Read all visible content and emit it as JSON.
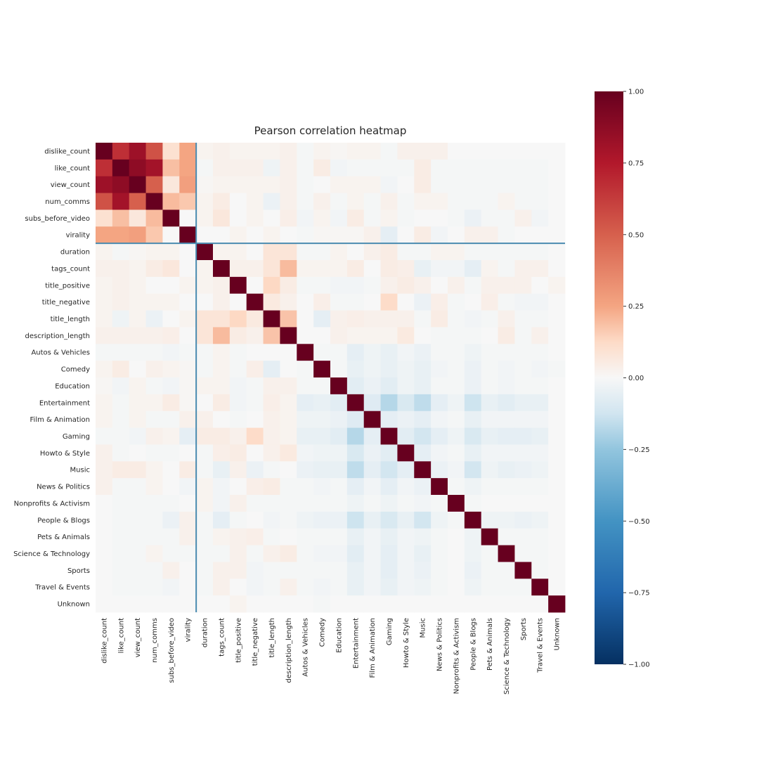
{
  "chart_data": {
    "type": "heatmap",
    "title": "Pearson correlation heatmap",
    "xlabel": "",
    "ylabel": "",
    "labels": [
      "dislike_count",
      "like_count",
      "view_count",
      "num_comms",
      "subs_before_video",
      "virality",
      "duration",
      "tags_count",
      "title_positive",
      "title_negative",
      "title_length",
      "description_length",
      "Autos & Vehicles",
      "Comedy",
      "Education",
      "Entertainment",
      "Film & Animation",
      "Gaming",
      "Howto & Style",
      "Music",
      "News & Politics",
      "Nonprofits & Activism",
      "People & Blogs",
      "Pets & Animals",
      "Science & Technology",
      "Sports",
      "Travel & Events",
      "Unknown"
    ],
    "colorbar": {
      "range": [
        -1.0,
        1.0
      ],
      "ticks": [
        -1.0,
        -0.75,
        -0.5,
        -0.25,
        0.0,
        0.25,
        0.5,
        0.75,
        1.0
      ],
      "tick_labels": [
        "−1.00",
        "−0.75",
        "−0.50",
        "−0.25",
        "0.00",
        "0.25",
        "0.50",
        "0.75",
        "1.00"
      ],
      "colormap": "RdBu_r"
    },
    "divider_after_index": 5,
    "divider_color": "#4a8bb0",
    "upper_values": [
      [
        0.67,
        0.82,
        0.55,
        0.1,
        0.25,
        0.02,
        0.03,
        0.02,
        0.02,
        0.02,
        0.03,
        -0.01,
        0.02,
        0.01,
        0.02,
        0.02,
        -0.01,
        0.03,
        0.03,
        0.03,
        0.0,
        0.0,
        0.0,
        0.0,
        0.0,
        0.0,
        0.0
      ],
      [
        0.87,
        0.8,
        0.19,
        0.25,
        -0.01,
        0.03,
        0.03,
        0.03,
        -0.03,
        0.03,
        -0.01,
        0.05,
        -0.02,
        -0.01,
        -0.01,
        -0.01,
        -0.01,
        0.05,
        -0.01,
        -0.01,
        -0.01,
        -0.01,
        -0.01,
        -0.01,
        -0.01,
        0.0
      ],
      [
        0.5,
        0.07,
        0.27,
        0.01,
        0.02,
        0.02,
        0.02,
        0.02,
        0.03,
        -0.01,
        0.0,
        0.02,
        0.02,
        0.02,
        -0.02,
        0.0,
        0.05,
        -0.01,
        -0.01,
        -0.01,
        -0.01,
        -0.01,
        -0.01,
        -0.01,
        0.0
      ],
      [
        0.2,
        0.17,
        0.02,
        0.05,
        0.0,
        0.02,
        -0.04,
        0.03,
        -0.01,
        0.03,
        -0.01,
        0.02,
        -0.01,
        0.03,
        -0.01,
        0.02,
        0.02,
        -0.01,
        -0.01,
        -0.01,
        0.02,
        -0.01,
        -0.01,
        0.0
      ],
      [
        0.0,
        0.02,
        0.07,
        0.0,
        0.02,
        0.0,
        0.04,
        -0.02,
        0.02,
        -0.02,
        0.05,
        -0.01,
        0.02,
        -0.01,
        0.0,
        0.0,
        -0.01,
        -0.04,
        -0.01,
        -0.01,
        0.03,
        -0.02,
        0.0
      ],
      [
        0.0,
        0.0,
        0.02,
        0.0,
        0.02,
        0.0,
        -0.01,
        0.01,
        0.01,
        0.01,
        0.03,
        -0.06,
        0.0,
        0.05,
        -0.02,
        0.0,
        0.03,
        0.03,
        -0.01,
        0.0,
        0.0,
        0.0
      ],
      [
        0.02,
        0.02,
        0.0,
        0.08,
        0.08,
        -0.01,
        -0.01,
        0.02,
        0.0,
        0.03,
        0.05,
        -0.01,
        -0.01,
        0.02,
        0.02,
        -0.01,
        -0.01,
        -0.01,
        -0.01,
        -0.01,
        0.0
      ],
      [
        0.03,
        0.03,
        0.08,
        0.2,
        0.02,
        0.02,
        0.02,
        0.05,
        0.0,
        0.05,
        0.04,
        -0.05,
        -0.02,
        -0.02,
        -0.06,
        0.02,
        -0.01,
        0.03,
        0.03,
        0.0
      ],
      [
        0.0,
        0.13,
        0.05,
        -0.01,
        -0.01,
        -0.02,
        -0.02,
        -0.01,
        0.03,
        0.05,
        0.03,
        0.0,
        0.03,
        -0.01,
        0.03,
        0.03,
        0.03,
        0.0,
        0.02
      ],
      [
        0.06,
        0.03,
        0.0,
        0.04,
        -0.01,
        -0.01,
        0.0,
        0.12,
        0.0,
        -0.04,
        0.04,
        -0.01,
        0.0,
        0.04,
        -0.01,
        -0.02,
        -0.02,
        0.0
      ],
      [
        0.18,
        0.0,
        -0.06,
        0.03,
        0.04,
        0.03,
        0.03,
        0.03,
        -0.01,
        0.05,
        -0.01,
        -0.02,
        -0.01,
        0.03,
        -0.01,
        -0.01,
        0.0
      ],
      [
        0.0,
        0.0,
        0.03,
        0.02,
        0.02,
        0.02,
        0.06,
        0.0,
        -0.01,
        -0.01,
        -0.01,
        0.0,
        0.05,
        -0.01,
        0.03,
        0.0
      ],
      [
        -0.01,
        -0.01,
        -0.06,
        -0.03,
        -0.05,
        -0.02,
        -0.04,
        -0.01,
        -0.01,
        -0.03,
        -0.01,
        -0.01,
        -0.01,
        -0.01,
        0.0
      ],
      [
        -0.01,
        -0.05,
        -0.03,
        -0.05,
        -0.03,
        -0.05,
        -0.02,
        -0.01,
        -0.04,
        -0.01,
        -0.02,
        -0.01,
        -0.02,
        -0.01
      ],
      [
        -0.07,
        -0.04,
        -0.07,
        -0.03,
        -0.05,
        -0.01,
        -0.01,
        -0.04,
        -0.01,
        -0.02,
        -0.01,
        -0.01,
        0.0
      ],
      [
        -0.08,
        -0.18,
        -0.1,
        -0.16,
        -0.06,
        -0.03,
        -0.13,
        -0.05,
        -0.07,
        -0.05,
        -0.05,
        0.0
      ],
      [
        -0.06,
        -0.04,
        -0.06,
        -0.02,
        -0.01,
        -0.05,
        -0.02,
        -0.02,
        -0.02,
        -0.02,
        0.0
      ],
      [
        -0.07,
        -0.12,
        -0.06,
        -0.03,
        -0.1,
        -0.05,
        -0.06,
        -0.06,
        -0.05,
        0.0
      ],
      [
        -0.06,
        -0.02,
        -0.01,
        -0.05,
        -0.02,
        -0.02,
        -0.02,
        -0.02,
        0.0
      ],
      [
        -0.04,
        -0.02,
        -0.12,
        -0.03,
        -0.05,
        -0.04,
        -0.03,
        0.0
      ],
      [
        -0.01,
        -0.03,
        -0.01,
        -0.01,
        -0.01,
        -0.01,
        0.0
      ],
      [
        -0.01,
        0.0,
        0.0,
        0.0,
        0.0,
        0.0
      ],
      [
        -0.03,
        -0.03,
        -0.04,
        -0.03,
        0.0
      ],
      [
        -0.01,
        -0.01,
        -0.01,
        0.0
      ],
      [
        -0.01,
        -0.01,
        0.0
      ],
      [
        -0.01,
        0.0
      ],
      [
        0.0
      ]
    ]
  }
}
